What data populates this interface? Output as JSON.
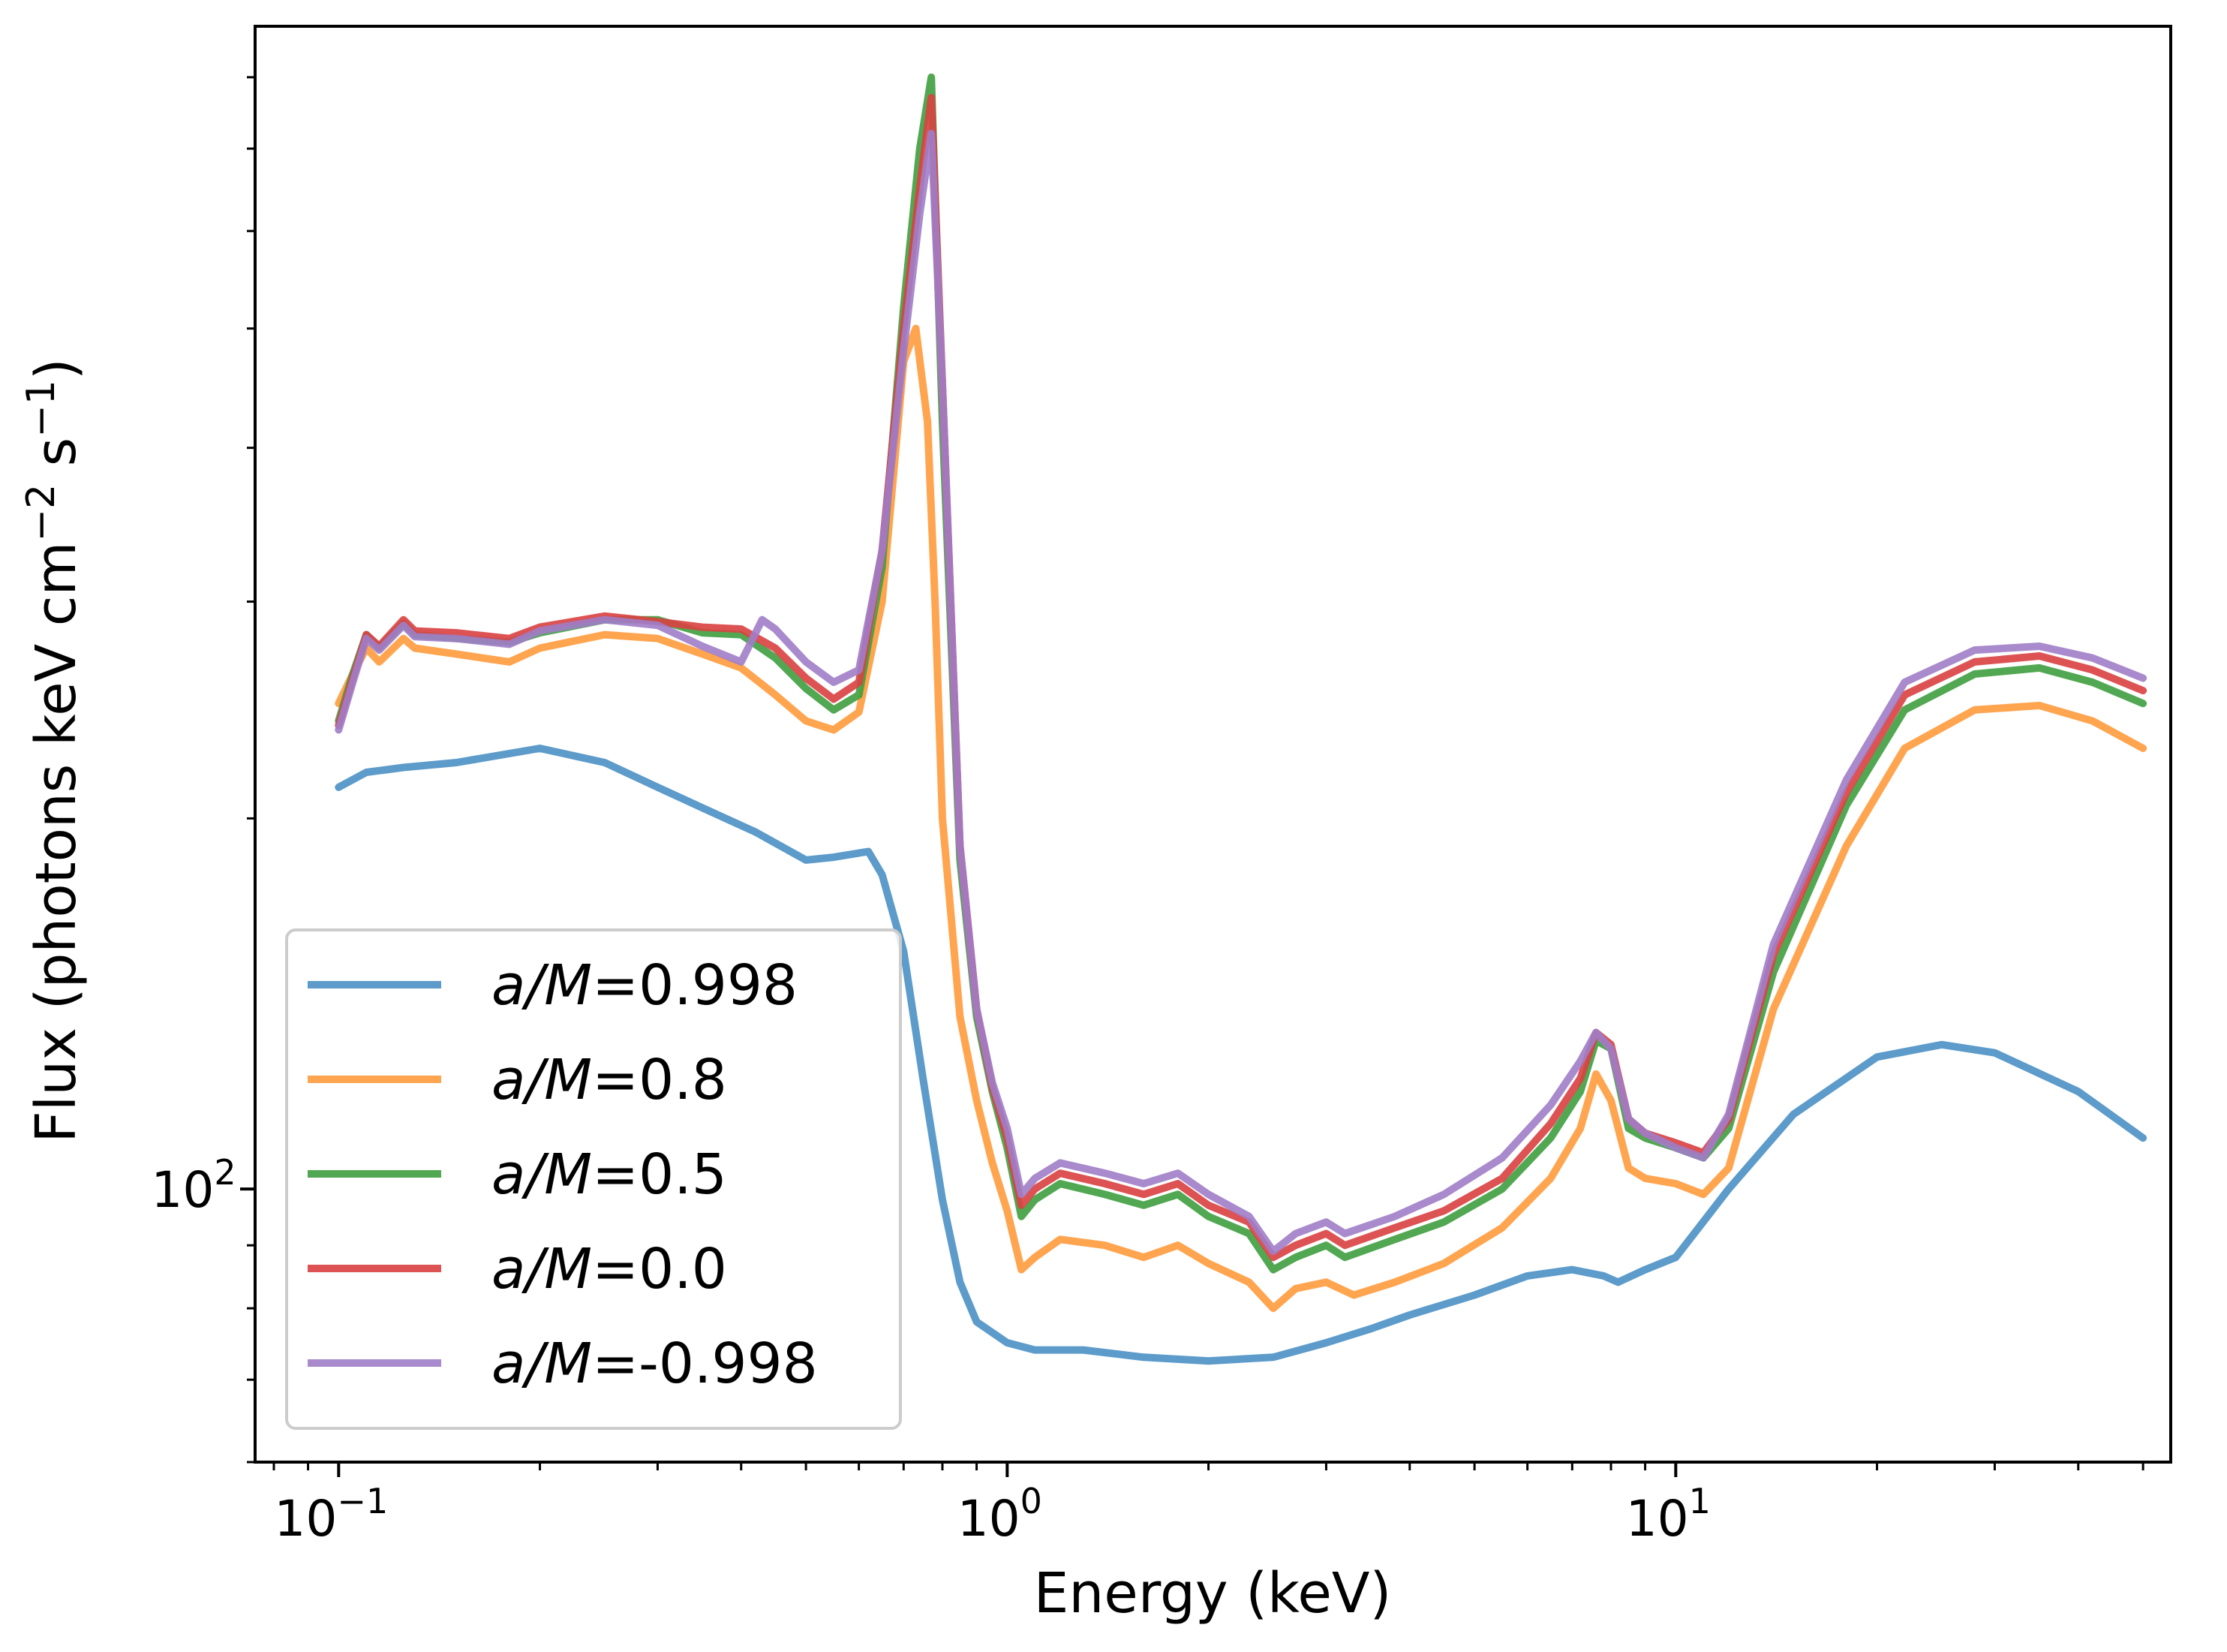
{
  "chart_data": {
    "type": "line",
    "title": "",
    "xlabel": "Energy (keV)",
    "ylabel_base": "Flux (photons keV cm",
    "ylabel_exp1": "−2",
    "ylabel_mid": " s",
    "ylabel_exp2": "−1",
    "ylabel_end": ")",
    "xscale": "log",
    "yscale": "log",
    "xlim": [
      0.075,
      55
    ],
    "ylim": [
      60,
      880
    ],
    "grid": false,
    "legend_position": "lower-left",
    "xticks": [
      {
        "value": 0.1,
        "base": "10",
        "exp": "−1"
      },
      {
        "value": 1,
        "base": "10",
        "exp": "0"
      },
      {
        "value": 10,
        "base": "10",
        "exp": "1"
      }
    ],
    "yticks": [
      {
        "value": 100,
        "base": "10",
        "exp": "2"
      }
    ],
    "series": [
      {
        "name": "a/M=0.998",
        "label_italic": "a/M",
        "label_value": "=0.998",
        "color": "#4a90c4",
        "points": [
          [
            0.1,
            212
          ],
          [
            0.11,
            218
          ],
          [
            0.125,
            220
          ],
          [
            0.15,
            222
          ],
          [
            0.2,
            228
          ],
          [
            0.25,
            222
          ],
          [
            0.3,
            212
          ],
          [
            0.35,
            204
          ],
          [
            0.42,
            195
          ],
          [
            0.5,
            185
          ],
          [
            0.55,
            186
          ],
          [
            0.62,
            188
          ],
          [
            0.65,
            180
          ],
          [
            0.7,
            156
          ],
          [
            0.75,
            122
          ],
          [
            0.8,
            98
          ],
          [
            0.85,
            84
          ],
          [
            0.9,
            78
          ],
          [
            1.0,
            75
          ],
          [
            1.1,
            74
          ],
          [
            1.3,
            74
          ],
          [
            1.6,
            73
          ],
          [
            2.0,
            72.5
          ],
          [
            2.5,
            73
          ],
          [
            3.0,
            75
          ],
          [
            3.5,
            77
          ],
          [
            4.0,
            79
          ],
          [
            5.0,
            82
          ],
          [
            6.0,
            85
          ],
          [
            7.0,
            86
          ],
          [
            7.8,
            85
          ],
          [
            8.2,
            84
          ],
          [
            9.0,
            86
          ],
          [
            10.0,
            88
          ],
          [
            12.0,
            100
          ],
          [
            15.0,
            115
          ],
          [
            20.0,
            128
          ],
          [
            25.0,
            131
          ],
          [
            30.0,
            129
          ],
          [
            40.0,
            120
          ],
          [
            50.0,
            110
          ]
        ]
      },
      {
        "name": "a/M=0.8",
        "label_italic": "a/M",
        "label_value": "=0.8",
        "color": "#ff9a3c",
        "points": [
          [
            0.1,
            248
          ],
          [
            0.105,
            262
          ],
          [
            0.11,
            275
          ],
          [
            0.115,
            268
          ],
          [
            0.125,
            280
          ],
          [
            0.13,
            275
          ],
          [
            0.15,
            272
          ],
          [
            0.18,
            268
          ],
          [
            0.2,
            275
          ],
          [
            0.25,
            282
          ],
          [
            0.3,
            280
          ],
          [
            0.35,
            272
          ],
          [
            0.4,
            265
          ],
          [
            0.45,
            252
          ],
          [
            0.5,
            240
          ],
          [
            0.55,
            236
          ],
          [
            0.6,
            244
          ],
          [
            0.65,
            300
          ],
          [
            0.7,
            470
          ],
          [
            0.73,
            500
          ],
          [
            0.76,
            420
          ],
          [
            0.78,
            300
          ],
          [
            0.8,
            200
          ],
          [
            0.85,
            138
          ],
          [
            0.9,
            118
          ],
          [
            0.95,
            105
          ],
          [
            1.0,
            96
          ],
          [
            1.05,
            86
          ],
          [
            1.1,
            88
          ],
          [
            1.2,
            91
          ],
          [
            1.4,
            90
          ],
          [
            1.6,
            88
          ],
          [
            1.8,
            90
          ],
          [
            2.0,
            87
          ],
          [
            2.3,
            84
          ],
          [
            2.5,
            80
          ],
          [
            2.7,
            83
          ],
          [
            3.0,
            84
          ],
          [
            3.3,
            82
          ],
          [
            3.8,
            84
          ],
          [
            4.5,
            87
          ],
          [
            5.5,
            93
          ],
          [
            6.5,
            102
          ],
          [
            7.2,
            112
          ],
          [
            7.6,
            124
          ],
          [
            8.0,
            118
          ],
          [
            8.5,
            104
          ],
          [
            9.0,
            102
          ],
          [
            10.0,
            101
          ],
          [
            11.0,
            99
          ],
          [
            12.0,
            104
          ],
          [
            14.0,
            140
          ],
          [
            18.0,
            190
          ],
          [
            22.0,
            228
          ],
          [
            28.0,
            245
          ],
          [
            35.0,
            247
          ],
          [
            42.0,
            240
          ],
          [
            50.0,
            228
          ]
        ]
      },
      {
        "name": "a/M=0.5",
        "label_italic": "a/M",
        "label_value": "=0.5",
        "color": "#3f9f3f",
        "points": [
          [
            0.1,
            240
          ],
          [
            0.105,
            262
          ],
          [
            0.11,
            282
          ],
          [
            0.115,
            275
          ],
          [
            0.125,
            288
          ],
          [
            0.13,
            282
          ],
          [
            0.15,
            280
          ],
          [
            0.18,
            278
          ],
          [
            0.2,
            283
          ],
          [
            0.25,
            290
          ],
          [
            0.3,
            290
          ],
          [
            0.35,
            283
          ],
          [
            0.4,
            282
          ],
          [
            0.45,
            270
          ],
          [
            0.5,
            255
          ],
          [
            0.55,
            245
          ],
          [
            0.6,
            252
          ],
          [
            0.65,
            320
          ],
          [
            0.7,
            520
          ],
          [
            0.74,
            700
          ],
          [
            0.77,
            800
          ],
          [
            0.8,
            420
          ],
          [
            0.85,
            185
          ],
          [
            0.9,
            138
          ],
          [
            0.95,
            120
          ],
          [
            1.0,
            108
          ],
          [
            1.05,
            95
          ],
          [
            1.1,
            98
          ],
          [
            1.2,
            101
          ],
          [
            1.4,
            99
          ],
          [
            1.6,
            97
          ],
          [
            1.8,
            99
          ],
          [
            2.0,
            95
          ],
          [
            2.3,
            92
          ],
          [
            2.5,
            86
          ],
          [
            2.7,
            88
          ],
          [
            3.0,
            90
          ],
          [
            3.2,
            88
          ],
          [
            3.8,
            91
          ],
          [
            4.5,
            94
          ],
          [
            5.5,
            100
          ],
          [
            6.5,
            110
          ],
          [
            7.2,
            120
          ],
          [
            7.6,
            132
          ],
          [
            8.0,
            130
          ],
          [
            8.5,
            112
          ],
          [
            9.0,
            110
          ],
          [
            10.0,
            108
          ],
          [
            11.0,
            106
          ],
          [
            12.0,
            112
          ],
          [
            14.0,
            150
          ],
          [
            18.0,
            205
          ],
          [
            22.0,
            245
          ],
          [
            28.0,
            262
          ],
          [
            35.0,
            265
          ],
          [
            42.0,
            258
          ],
          [
            50.0,
            248
          ]
        ]
      },
      {
        "name": "a/M=0.0",
        "label_italic": "a/M",
        "label_value": "=0.0",
        "color": "#d94040",
        "points": [
          [
            0.1,
            238
          ],
          [
            0.105,
            260
          ],
          [
            0.11,
            282
          ],
          [
            0.115,
            276
          ],
          [
            0.125,
            290
          ],
          [
            0.13,
            284
          ],
          [
            0.15,
            283
          ],
          [
            0.18,
            280
          ],
          [
            0.2,
            286
          ],
          [
            0.25,
            292
          ],
          [
            0.3,
            289
          ],
          [
            0.35,
            286
          ],
          [
            0.4,
            285
          ],
          [
            0.45,
            275
          ],
          [
            0.5,
            260
          ],
          [
            0.55,
            250
          ],
          [
            0.6,
            258
          ],
          [
            0.65,
            330
          ],
          [
            0.7,
            500
          ],
          [
            0.74,
            650
          ],
          [
            0.77,
            770
          ],
          [
            0.8,
            450
          ],
          [
            0.85,
            190
          ],
          [
            0.9,
            140
          ],
          [
            0.95,
            121
          ],
          [
            1.0,
            110
          ],
          [
            1.05,
            97
          ],
          [
            1.1,
            100
          ],
          [
            1.2,
            103
          ],
          [
            1.4,
            101
          ],
          [
            1.6,
            99
          ],
          [
            1.8,
            101
          ],
          [
            2.0,
            97
          ],
          [
            2.3,
            94
          ],
          [
            2.5,
            88
          ],
          [
            2.7,
            90
          ],
          [
            3.0,
            92
          ],
          [
            3.2,
            90
          ],
          [
            3.8,
            93
          ],
          [
            4.5,
            96
          ],
          [
            5.5,
            102
          ],
          [
            6.5,
            113
          ],
          [
            7.2,
            123
          ],
          [
            7.6,
            134
          ],
          [
            8.0,
            131
          ],
          [
            8.5,
            114
          ],
          [
            9.0,
            111
          ],
          [
            10.0,
            109
          ],
          [
            11.0,
            107
          ],
          [
            12.0,
            114
          ],
          [
            14.0,
            155
          ],
          [
            18.0,
            210
          ],
          [
            22.0,
            252
          ],
          [
            28.0,
            268
          ],
          [
            35.0,
            271
          ],
          [
            42.0,
            264
          ],
          [
            50.0,
            254
          ]
        ]
      },
      {
        "name": "a/M=-0.998",
        "label_italic": "a/M",
        "label_value": "=-0.998",
        "color": "#a07dc8",
        "points": [
          [
            0.1,
            236
          ],
          [
            0.105,
            258
          ],
          [
            0.11,
            280
          ],
          [
            0.115,
            274
          ],
          [
            0.125,
            287
          ],
          [
            0.13,
            281
          ],
          [
            0.15,
            280
          ],
          [
            0.18,
            277
          ],
          [
            0.2,
            284
          ],
          [
            0.25,
            290
          ],
          [
            0.3,
            287
          ],
          [
            0.35,
            276
          ],
          [
            0.4,
            268
          ],
          [
            0.43,
            290
          ],
          [
            0.45,
            285
          ],
          [
            0.5,
            268
          ],
          [
            0.55,
            258
          ],
          [
            0.6,
            264
          ],
          [
            0.65,
            330
          ],
          [
            0.7,
            480
          ],
          [
            0.74,
            620
          ],
          [
            0.77,
            720
          ],
          [
            0.8,
            450
          ],
          [
            0.85,
            190
          ],
          [
            0.9,
            140
          ],
          [
            0.95,
            122
          ],
          [
            1.0,
            112
          ],
          [
            1.05,
            99
          ],
          [
            1.1,
            102
          ],
          [
            1.2,
            105
          ],
          [
            1.4,
            103
          ],
          [
            1.6,
            101
          ],
          [
            1.8,
            103
          ],
          [
            2.0,
            99
          ],
          [
            2.3,
            95
          ],
          [
            2.5,
            89
          ],
          [
            2.7,
            92
          ],
          [
            3.0,
            94
          ],
          [
            3.2,
            92
          ],
          [
            3.8,
            95
          ],
          [
            4.5,
            99
          ],
          [
            5.5,
            106
          ],
          [
            6.5,
            117
          ],
          [
            7.2,
            127
          ],
          [
            7.6,
            134
          ],
          [
            8.0,
            130
          ],
          [
            8.5,
            114
          ],
          [
            9.0,
            111
          ],
          [
            10.0,
            108
          ],
          [
            11.0,
            106
          ],
          [
            12.0,
            115
          ],
          [
            14.0,
            158
          ],
          [
            18.0,
            215
          ],
          [
            22.0,
            258
          ],
          [
            28.0,
            274
          ],
          [
            35.0,
            276
          ],
          [
            42.0,
            270
          ],
          [
            50.0,
            260
          ]
        ]
      }
    ]
  }
}
